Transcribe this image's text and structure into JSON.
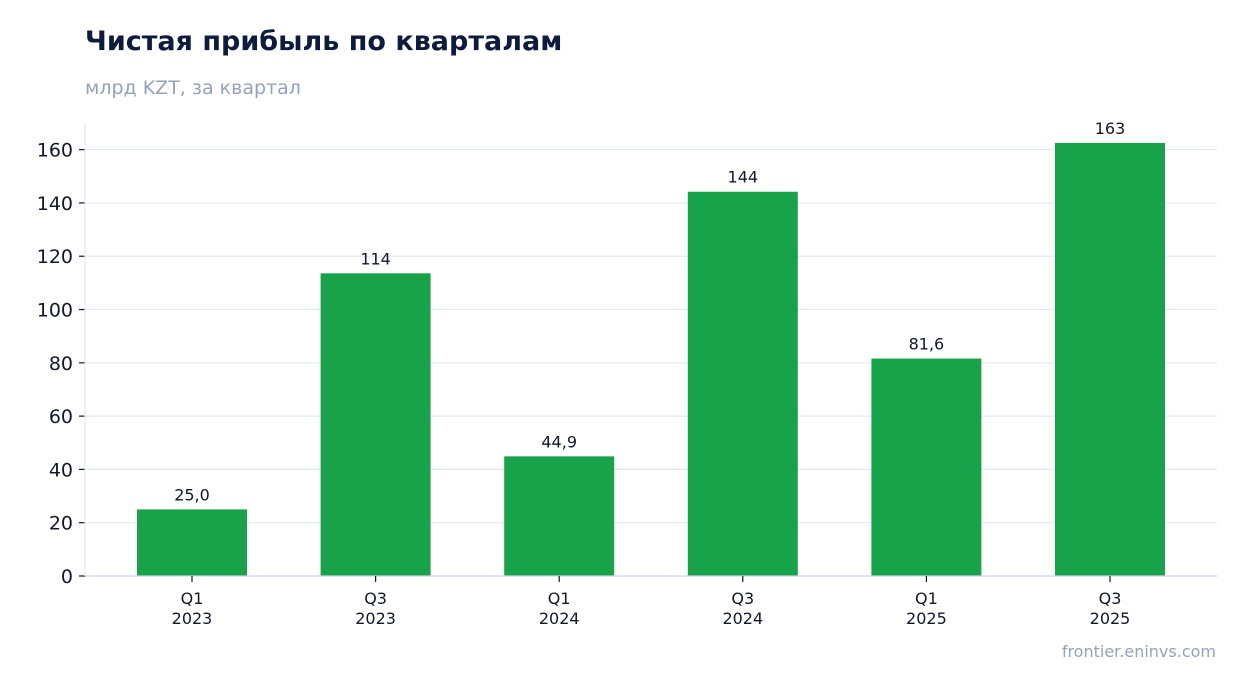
{
  "title": "Чистая прибыль по кварталам",
  "subtitle": "млрд KZT, за квартал",
  "source": "frontier.eninvs.com",
  "colors": {
    "bar": "#18a34a",
    "title": "#0d1b3e",
    "muted": "#94a3b8",
    "grid": "#e2e8f0",
    "axis": "#111827"
  },
  "chart_data": {
    "type": "bar",
    "title": "Чистая прибыль по кварталам",
    "subtitle": "млрд KZT, за квартал",
    "xlabel": "",
    "ylabel": "",
    "categories": [
      [
        "Q1",
        "2023"
      ],
      [
        "Q3",
        "2023"
      ],
      [
        "Q1",
        "2024"
      ],
      [
        "Q3",
        "2024"
      ],
      [
        "Q1",
        "2025"
      ],
      [
        "Q3",
        "2025"
      ]
    ],
    "values": [
      25.0,
      113.6,
      44.9,
      144.2,
      81.6,
      162.5
    ],
    "data_labels": [
      "25,0",
      "114",
      "44,9",
      "144",
      "81,6",
      "163"
    ],
    "yticks": [
      0,
      20,
      40,
      60,
      80,
      100,
      120,
      140,
      160
    ],
    "ylim": [
      0,
      170
    ],
    "grid": true,
    "legend": "none"
  }
}
